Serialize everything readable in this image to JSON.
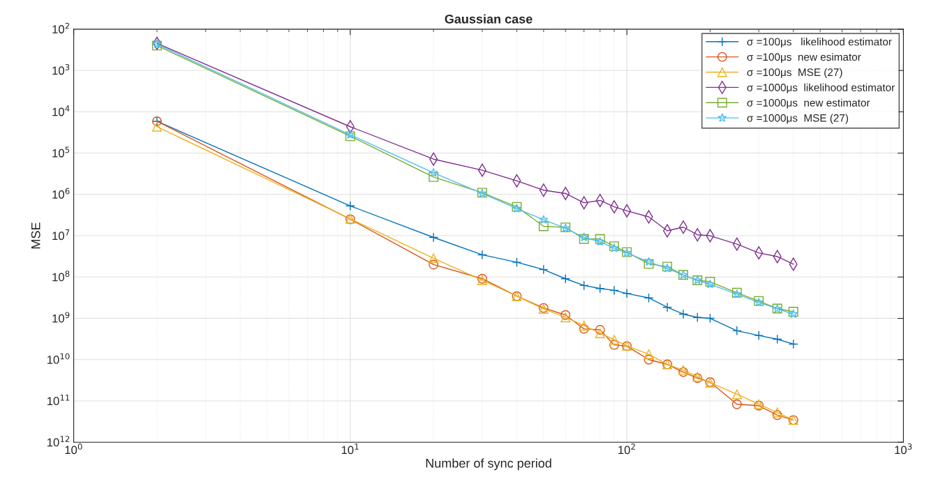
{
  "chart_data": {
    "type": "line",
    "title": "Gaussian case",
    "xlabel": "Number of sync period",
    "ylabel": "MSE",
    "x": [
      2,
      10,
      20,
      30,
      40,
      50,
      60,
      70,
      80,
      90,
      100,
      120,
      140,
      160,
      180,
      200,
      250,
      300,
      350,
      400
    ],
    "series": [
      {
        "name": "σ =100μs   likelihood estimator",
        "color": "#0072bd",
        "marker": "cross",
        "values": [
          17000.0,
          1900000.0,
          11000000.0,
          29000000.0,
          44000000.0,
          66000000.0,
          110000000.0,
          160000000.0,
          190000000.0,
          210000000.0,
          250000000.0,
          320000000.0,
          540000000.0,
          790000000.0,
          950000000.0,
          1000000000.0,
          2000000000.0,
          2600000000.0,
          3200000000.0,
          4200000000.0
        ]
      },
      {
        "name": "σ =100μs  new esimator",
        "color": "#d95319",
        "marker": "circle",
        "values": [
          17000.0,
          4000000.0,
          50000000.0,
          110000000.0,
          290000000.0,
          560000000.0,
          830000000.0,
          1800000000.0,
          1900000000.0,
          4400000000.0,
          4700000000.0,
          10000000000.0,
          13000000000.0,
          20000000000.0,
          28000000000.0,
          35000000000.0,
          120000000000.0,
          130000000000.0,
          220000000000.0,
          290000000000.0
        ]
      },
      {
        "name": "σ =100μs  MSE (27)",
        "color": "#edb120",
        "marker": "triangle",
        "values": [
          23000.0,
          3900000.0,
          35000000.0,
          120000000.0,
          290000000.0,
          590000000.0,
          950000000.0,
          1500000000.0,
          2300000000.0,
          3300000000.0,
          4600000000.0,
          7400000000.0,
          13000000000.0,
          18000000000.0,
          26000000000.0,
          36000000000.0,
          69000000000.0,
          120000000000.0,
          190000000000.0,
          290000000000.0
        ]
      },
      {
        "name": "σ =1000μs  likelihood estimator",
        "color": "#7e2f8e",
        "marker": "diamond",
        "values": [
          220,
          23000.0,
          140000.0,
          260000.0,
          470000.0,
          790000.0,
          950000.0,
          1600000.0,
          1400000.0,
          2000000.0,
          2500000.0,
          3500000.0,
          7600000.0,
          6200000.0,
          9500000.0,
          10000000.0,
          16000000.0,
          26000000.0,
          32000000.0,
          49000000.0
        ]
      },
      {
        "name": "σ =1000μs  new estimator",
        "color": "#77ac30",
        "marker": "square",
        "values": [
          250,
          39000.0,
          380000.0,
          910000.0,
          2000000.0,
          5900000.0,
          6300000.0,
          12000000.0,
          12000000.0,
          18000000.0,
          25000000.0,
          48000000.0,
          56000000.0,
          89000000.0,
          120000000.0,
          130000000.0,
          240000000.0,
          380000000.0,
          580000000.0,
          690000000.0
        ]
      },
      {
        "name": "σ =1000μs  MSE (27)",
        "color": "#4dbeee",
        "marker": "star",
        "values": [
          230,
          36000.0,
          300000.0,
          950000.0,
          2200000.0,
          4100000.0,
          6600000.0,
          11000000.0,
          14000000.0,
          20000000.0,
          26000000.0,
          43000000.0,
          62000000.0,
          89000000.0,
          120000000.0,
          150000000.0,
          260000000.0,
          410000000.0,
          590000000.0,
          790000000.0
        ]
      }
    ],
    "log": "xy",
    "xlim": [
      1,
      1000
    ],
    "xticks": [
      {
        "value": 1,
        "label": "10$^{0}$"
      },
      {
        "value": 10,
        "label": "10$^{1}$"
      },
      {
        "value": 100,
        "label": "10$^{2}$"
      },
      {
        "value": 1000,
        "label": "10$^{3}$"
      }
    ],
    "ylim": [
      1000000000000.0,
      100
    ],
    "yticks": [
      {
        "value": 100,
        "label": "10$^{2}$"
      },
      {
        "value": 1000,
        "label": "10$^{3}$"
      },
      {
        "value": 10000.0,
        "label": "10$^{4}$"
      },
      {
        "value": 100000.0,
        "label": "10$^{5}$"
      },
      {
        "value": 1000000.0,
        "label": "10$^{6}$"
      },
      {
        "value": 10000000.0,
        "label": "10$^{7}$"
      },
      {
        "value": 100000000.0,
        "label": "10$^{8}$"
      },
      {
        "value": 1000000000.0,
        "label": "10$^{9}$"
      },
      {
        "value": 10000000000.0,
        "label": "10$^{10}$"
      },
      {
        "value": 100000000000.0,
        "label": "10$^{11}$"
      },
      {
        "value": 1000000000000.0,
        "label": "10$^{12}$"
      }
    ],
    "grid": true,
    "legend": "top right",
    "line_style": "solid"
  }
}
